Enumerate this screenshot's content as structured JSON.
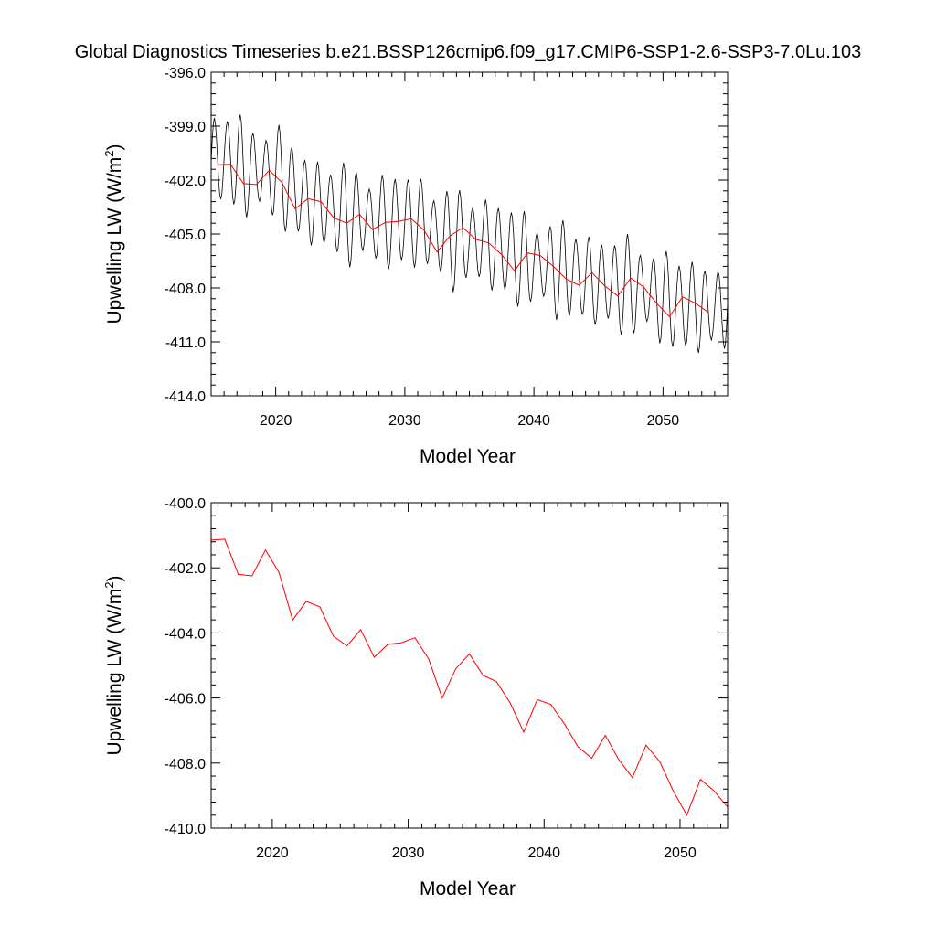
{
  "title": "Global Diagnostics Timeseries b.e21.BSSP126cmip6.f09_g17.CMIP6-SSP1-2.6-SSP3-7.0Lu.103",
  "colors": {
    "monthly": "#000000",
    "annual": "#ff0000",
    "axes": "#000000"
  },
  "chart_data": [
    {
      "type": "line",
      "xlabel": "Model Year",
      "ylabel": "Upwelling LW (W/m",
      "ylabel_sup": "2",
      "ylabel_close": ")",
      "xlim": [
        2015.0,
        2055.0
      ],
      "ylim": [
        -414.0,
        -396.0
      ],
      "xticks": [
        2020,
        2030,
        2040,
        2050
      ],
      "yticks": [
        -414.0,
        -411.0,
        -408.0,
        -405.0,
        -402.0,
        -399.0,
        -396.0
      ],
      "ytick_labels": [
        "-414.0",
        "-411.0",
        "-408.0",
        "-405.0",
        "-402.0",
        "-399.0",
        "-396.0"
      ],
      "series": [
        {
          "style": "monthly",
          "amplitude": 2.3,
          "x_start": 2015.0,
          "x_end": 2055.0,
          "anchors_x": [
            2015.0,
            2016.5,
            2018.0,
            2020.0,
            2022.0,
            2025.0,
            2028.0,
            2031.0,
            2033.0,
            2036.0,
            2039.0,
            2042.0,
            2045.0,
            2048.0,
            2051.0,
            2053.5,
            2055.0
          ],
          "anchors_y": [
            -401.0,
            -400.8,
            -401.5,
            -401.6,
            -403.0,
            -403.8,
            -404.3,
            -404.3,
            -405.2,
            -405.4,
            -406.4,
            -407.0,
            -407.7,
            -408.0,
            -408.9,
            -409.2,
            -408.8
          ]
        },
        {
          "style": "annual",
          "x": [
            2015.5,
            2016.5,
            2017.5,
            2018.5,
            2019.5,
            2020.5,
            2021.5,
            2022.5,
            2023.5,
            2024.5,
            2025.5,
            2026.5,
            2027.5,
            2028.5,
            2029.5,
            2030.5,
            2031.5,
            2032.5,
            2033.5,
            2034.5,
            2035.5,
            2036.5,
            2037.5,
            2038.5,
            2039.5,
            2040.5,
            2041.5,
            2042.5,
            2043.5,
            2044.5,
            2045.5,
            2046.5,
            2047.5,
            2048.5,
            2049.5,
            2050.5,
            2051.5,
            2052.5,
            2053.5
          ],
          "y": [
            -401.15,
            -401.12,
            -402.2,
            -402.25,
            -401.45,
            -402.15,
            -403.6,
            -403.03,
            -403.2,
            -404.1,
            -404.4,
            -403.9,
            -404.75,
            -404.35,
            -404.3,
            -404.15,
            -404.8,
            -406.0,
            -405.1,
            -404.65,
            -405.3,
            -405.5,
            -406.15,
            -407.05,
            -406.05,
            -406.2,
            -406.8,
            -407.5,
            -407.85,
            -407.15,
            -407.9,
            -408.45,
            -407.45,
            -407.95,
            -408.85,
            -409.6,
            -408.5,
            -408.85,
            -409.35
          ]
        }
      ]
    },
    {
      "type": "line",
      "xlabel": "Model Year",
      "ylabel": "Upwelling LW (W/m",
      "ylabel_sup": "2",
      "ylabel_close": ")",
      "xlim": [
        2015.5,
        2053.5
      ],
      "ylim": [
        -410.0,
        -400.0
      ],
      "xticks": [
        2020,
        2030,
        2040,
        2050
      ],
      "yticks": [
        -410.0,
        -408.0,
        -406.0,
        -404.0,
        -402.0,
        -400.0
      ],
      "ytick_labels": [
        "-410.0",
        "-408.0",
        "-406.0",
        "-404.0",
        "-402.0",
        "-400.0"
      ],
      "series": [
        {
          "style": "annual",
          "x": [
            2015.5,
            2016.5,
            2017.5,
            2018.5,
            2019.5,
            2020.5,
            2021.5,
            2022.5,
            2023.5,
            2024.5,
            2025.5,
            2026.5,
            2027.5,
            2028.5,
            2029.5,
            2030.5,
            2031.5,
            2032.5,
            2033.5,
            2034.5,
            2035.5,
            2036.5,
            2037.5,
            2038.5,
            2039.5,
            2040.5,
            2041.5,
            2042.5,
            2043.5,
            2044.5,
            2045.5,
            2046.5,
            2047.5,
            2048.5,
            2049.5,
            2050.5,
            2051.5,
            2052.5,
            2053.5
          ],
          "y": [
            -401.15,
            -401.12,
            -402.2,
            -402.25,
            -401.45,
            -402.15,
            -403.6,
            -403.03,
            -403.2,
            -404.1,
            -404.4,
            -403.9,
            -404.75,
            -404.35,
            -404.3,
            -404.15,
            -404.8,
            -406.0,
            -405.1,
            -404.65,
            -405.3,
            -405.5,
            -406.15,
            -407.05,
            -406.05,
            -406.2,
            -406.8,
            -407.5,
            -407.85,
            -407.15,
            -407.9,
            -408.45,
            -407.45,
            -407.95,
            -408.85,
            -409.6,
            -408.5,
            -408.85,
            -409.35
          ]
        }
      ]
    }
  ]
}
